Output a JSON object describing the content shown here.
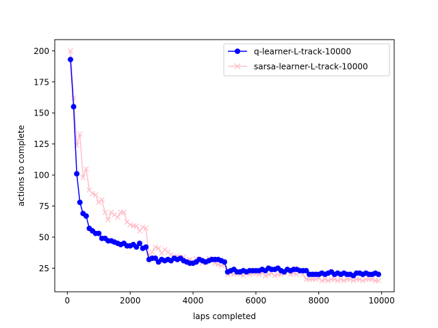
{
  "chart_data": {
    "type": "line",
    "title": "",
    "xlabel": "laps completed",
    "ylabel": "actions to complete",
    "xlim": [
      -400,
      10400
    ],
    "ylim": [
      6,
      209
    ],
    "xticks": [
      0,
      2000,
      4000,
      6000,
      8000,
      10000
    ],
    "yticks": [
      25,
      50,
      75,
      100,
      125,
      150,
      175,
      200
    ],
    "grid": false,
    "legend_position": "upper right",
    "series": [
      {
        "name": "q-learner-L-track-10000",
        "color": "#0000ff",
        "marker": "circle",
        "x": [
          100,
          200,
          300,
          400,
          500,
          600,
          700,
          800,
          900,
          1000,
          1100,
          1200,
          1300,
          1400,
          1500,
          1600,
          1700,
          1800,
          1900,
          2000,
          2100,
          2200,
          2300,
          2400,
          2500,
          2600,
          2700,
          2800,
          2900,
          3000,
          3100,
          3200,
          3300,
          3400,
          3500,
          3600,
          3700,
          3800,
          3900,
          4000,
          4100,
          4200,
          4300,
          4400,
          4500,
          4600,
          4700,
          4800,
          4900,
          5000,
          5100,
          5200,
          5300,
          5400,
          5500,
          5600,
          5700,
          5800,
          5900,
          6000,
          6100,
          6200,
          6300,
          6400,
          6500,
          6600,
          6700,
          6800,
          6900,
          7000,
          7100,
          7200,
          7300,
          7400,
          7500,
          7600,
          7700,
          7800,
          7900,
          8000,
          8100,
          8200,
          8300,
          8400,
          8500,
          8600,
          8700,
          8800,
          8900,
          9000,
          9100,
          9200,
          9300,
          9400,
          9500,
          9600,
          9700,
          9800,
          9900
        ],
        "values": [
          193,
          155,
          101,
          78,
          69,
          67,
          57,
          55,
          53,
          53,
          49,
          49,
          47,
          47,
          46,
          45,
          44,
          45,
          43,
          43,
          44,
          42,
          45,
          41,
          42,
          32,
          33,
          33,
          30,
          32,
          31,
          32,
          31,
          33,
          32,
          33,
          31,
          30,
          29,
          29,
          30,
          32,
          31,
          30,
          31,
          32,
          32,
          32,
          31,
          30,
          22,
          23,
          24,
          22,
          22,
          23,
          22,
          23,
          23,
          23,
          23,
          24,
          23,
          25,
          24,
          24,
          25,
          23,
          22,
          24,
          23,
          24,
          24,
          23,
          23,
          23,
          20,
          20,
          20,
          20,
          21,
          20,
          21,
          22,
          20,
          21,
          20,
          21,
          20,
          20,
          19,
          21,
          21,
          20,
          21,
          20,
          20,
          21,
          20
        ]
      },
      {
        "name": "sarsa-learner-L-track-10000",
        "color": "#ffc0cb",
        "marker": "x",
        "x": [
          100,
          200,
          300,
          400,
          500,
          600,
          700,
          800,
          900,
          1000,
          1100,
          1200,
          1300,
          1400,
          1500,
          1600,
          1700,
          1800,
          1900,
          2000,
          2100,
          2200,
          2300,
          2400,
          2500,
          2600,
          2700,
          2800,
          2900,
          3000,
          3100,
          3200,
          3300,
          3400,
          3500,
          3600,
          3700,
          3800,
          3900,
          4000,
          4100,
          4200,
          4300,
          4400,
          4500,
          4600,
          4700,
          4800,
          4900,
          5000,
          5100,
          5200,
          5300,
          5400,
          5500,
          5600,
          5700,
          5800,
          5900,
          6000,
          6100,
          6200,
          6300,
          6400,
          6500,
          6600,
          6700,
          6800,
          6900,
          7000,
          7100,
          7200,
          7300,
          7400,
          7500,
          7600,
          7700,
          7800,
          7900,
          8000,
          8100,
          8200,
          8300,
          8400,
          8500,
          8600,
          8700,
          8800,
          8900,
          9000,
          9100,
          9200,
          9300,
          9400,
          9500,
          9600,
          9700,
          9800,
          9900
        ],
        "values": [
          200,
          162,
          124,
          133,
          98,
          105,
          88,
          85,
          84,
          78,
          80,
          70,
          64,
          70,
          68,
          66,
          70,
          70,
          62,
          60,
          59,
          59,
          55,
          58,
          57,
          35,
          38,
          42,
          41,
          37,
          40,
          38,
          36,
          34,
          35,
          33,
          34,
          31,
          32,
          30,
          33,
          31,
          29,
          30,
          33,
          31,
          29,
          28,
          27,
          28,
          20,
          21,
          20,
          21,
          20,
          19,
          21,
          20,
          21,
          21,
          20,
          21,
          19,
          20,
          21,
          19,
          20,
          20,
          21,
          22,
          20,
          21,
          20,
          22,
          20,
          16,
          16,
          16,
          16,
          17,
          15,
          16,
          15,
          16,
          16,
          15,
          16,
          15,
          16,
          16,
          15,
          16,
          16,
          15,
          16,
          16,
          16,
          15,
          15
        ]
      }
    ]
  }
}
